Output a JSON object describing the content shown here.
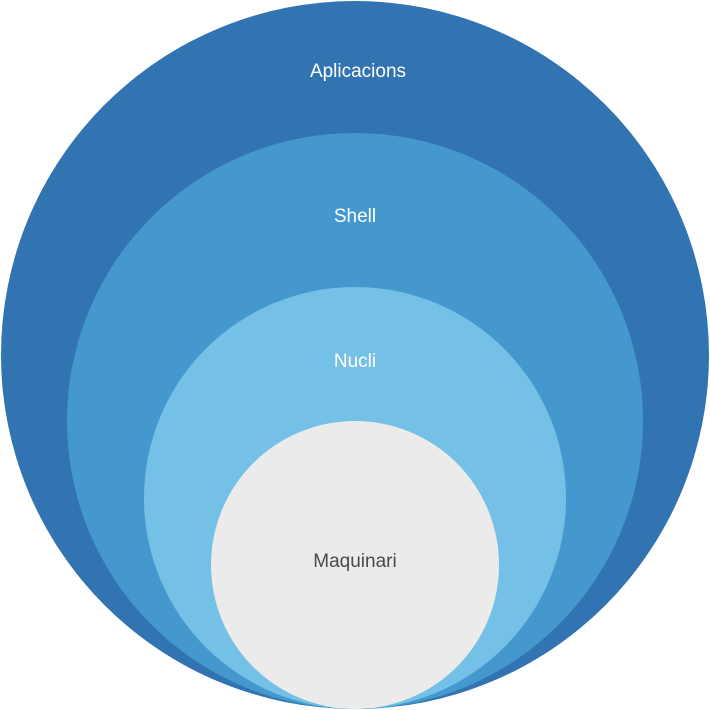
{
  "diagram": {
    "layers": [
      {
        "id": "applications",
        "label": "Aplicacions",
        "color": "#3274b2"
      },
      {
        "id": "shell",
        "label": "Shell",
        "color": "#4598ce"
      },
      {
        "id": "kernel",
        "label": "Nucli",
        "color": "#74c0e6"
      },
      {
        "id": "hardware",
        "label": "Maquinari",
        "color": "#ebebeb"
      }
    ]
  }
}
